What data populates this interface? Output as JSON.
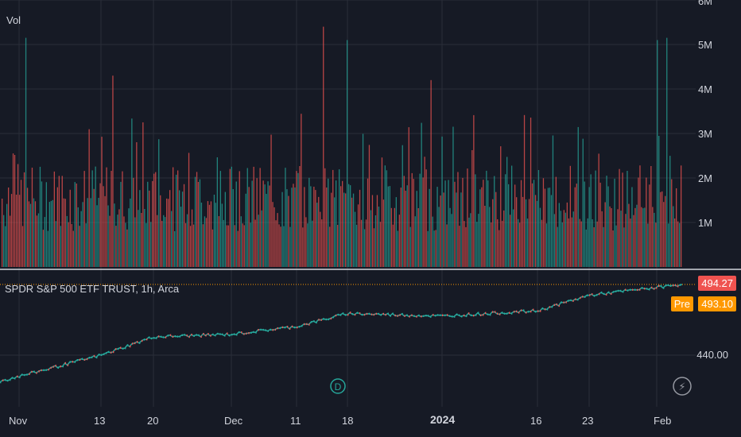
{
  "volume_pane": {
    "label": "Vol",
    "axis_ticks": [
      "6M",
      "5M",
      "4M",
      "3M",
      "2M",
      "1M"
    ]
  },
  "price_pane": {
    "legend": "SPDR S&P 500 ETF TRUST, 1h, Arca",
    "last_price": "494.27",
    "pre_label": "Pre",
    "pre_price": "493.10",
    "axis_tick": "440.00",
    "dividend_marker": "D",
    "split_marker": "⚡"
  },
  "x_axis": {
    "labels": [
      "Nov",
      "13",
      "20",
      "Dec",
      "11",
      "18",
      "2024",
      "16",
      "23",
      "Feb"
    ]
  },
  "colors": {
    "background": "#161a25",
    "up": "#26a69a",
    "down": "#ef5350",
    "grid": "#2a2e39",
    "text": "#d1d4dc",
    "last_price": "#ef5350",
    "pre_price": "#ff9800"
  },
  "chart_data": [
    {
      "type": "bar",
      "title": "Vol",
      "ylim": [
        0,
        6000000
      ],
      "yticks": [
        1000000,
        2000000,
        3000000,
        4000000,
        5000000,
        6000000
      ],
      "notable_values": [
        5150000,
        5400000,
        5100000,
        4300000,
        5100000,
        5150000,
        4200000
      ]
    },
    {
      "type": "line",
      "title": "SPDR S&P 500 ETF TRUST, 1h, Arca",
      "ytick": 440.0,
      "last": 494.27,
      "pre_market": 493.1,
      "points": [
        {
          "x": "Nov",
          "y": 420.0
        },
        {
          "x": "13",
          "y": 440.0
        },
        {
          "x": "20",
          "y": 454.0
        },
        {
          "x": "Dec",
          "y": 456.0
        },
        {
          "x": "11",
          "y": 462.0
        },
        {
          "x": "18",
          "y": 472.0
        },
        {
          "x": "2024",
          "y": 470.0
        },
        {
          "x": "16",
          "y": 474.0
        },
        {
          "x": "23",
          "y": 486.0
        },
        {
          "x": "Feb",
          "y": 494.27
        }
      ]
    }
  ]
}
